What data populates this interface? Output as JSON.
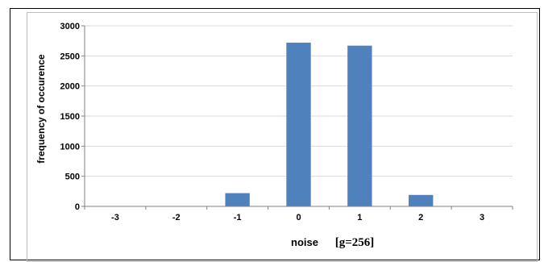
{
  "chart_data": {
    "type": "bar",
    "categories": [
      "-3",
      "-2",
      "-1",
      "0",
      "1",
      "2",
      "3"
    ],
    "values": [
      0,
      0,
      220,
      2720,
      2670,
      190,
      0
    ],
    "title": "",
    "xlabel": "noise",
    "xlabel_note": "[g=256]",
    "ylabel": "frequency of occurence",
    "ylim": [
      0,
      3000
    ],
    "yticks": [
      "0",
      "500",
      "1000",
      "1500",
      "2000",
      "2500",
      "3000"
    ],
    "grid": true,
    "bar_color": "#4f81bd",
    "grid_color": "#d9d9d9"
  }
}
